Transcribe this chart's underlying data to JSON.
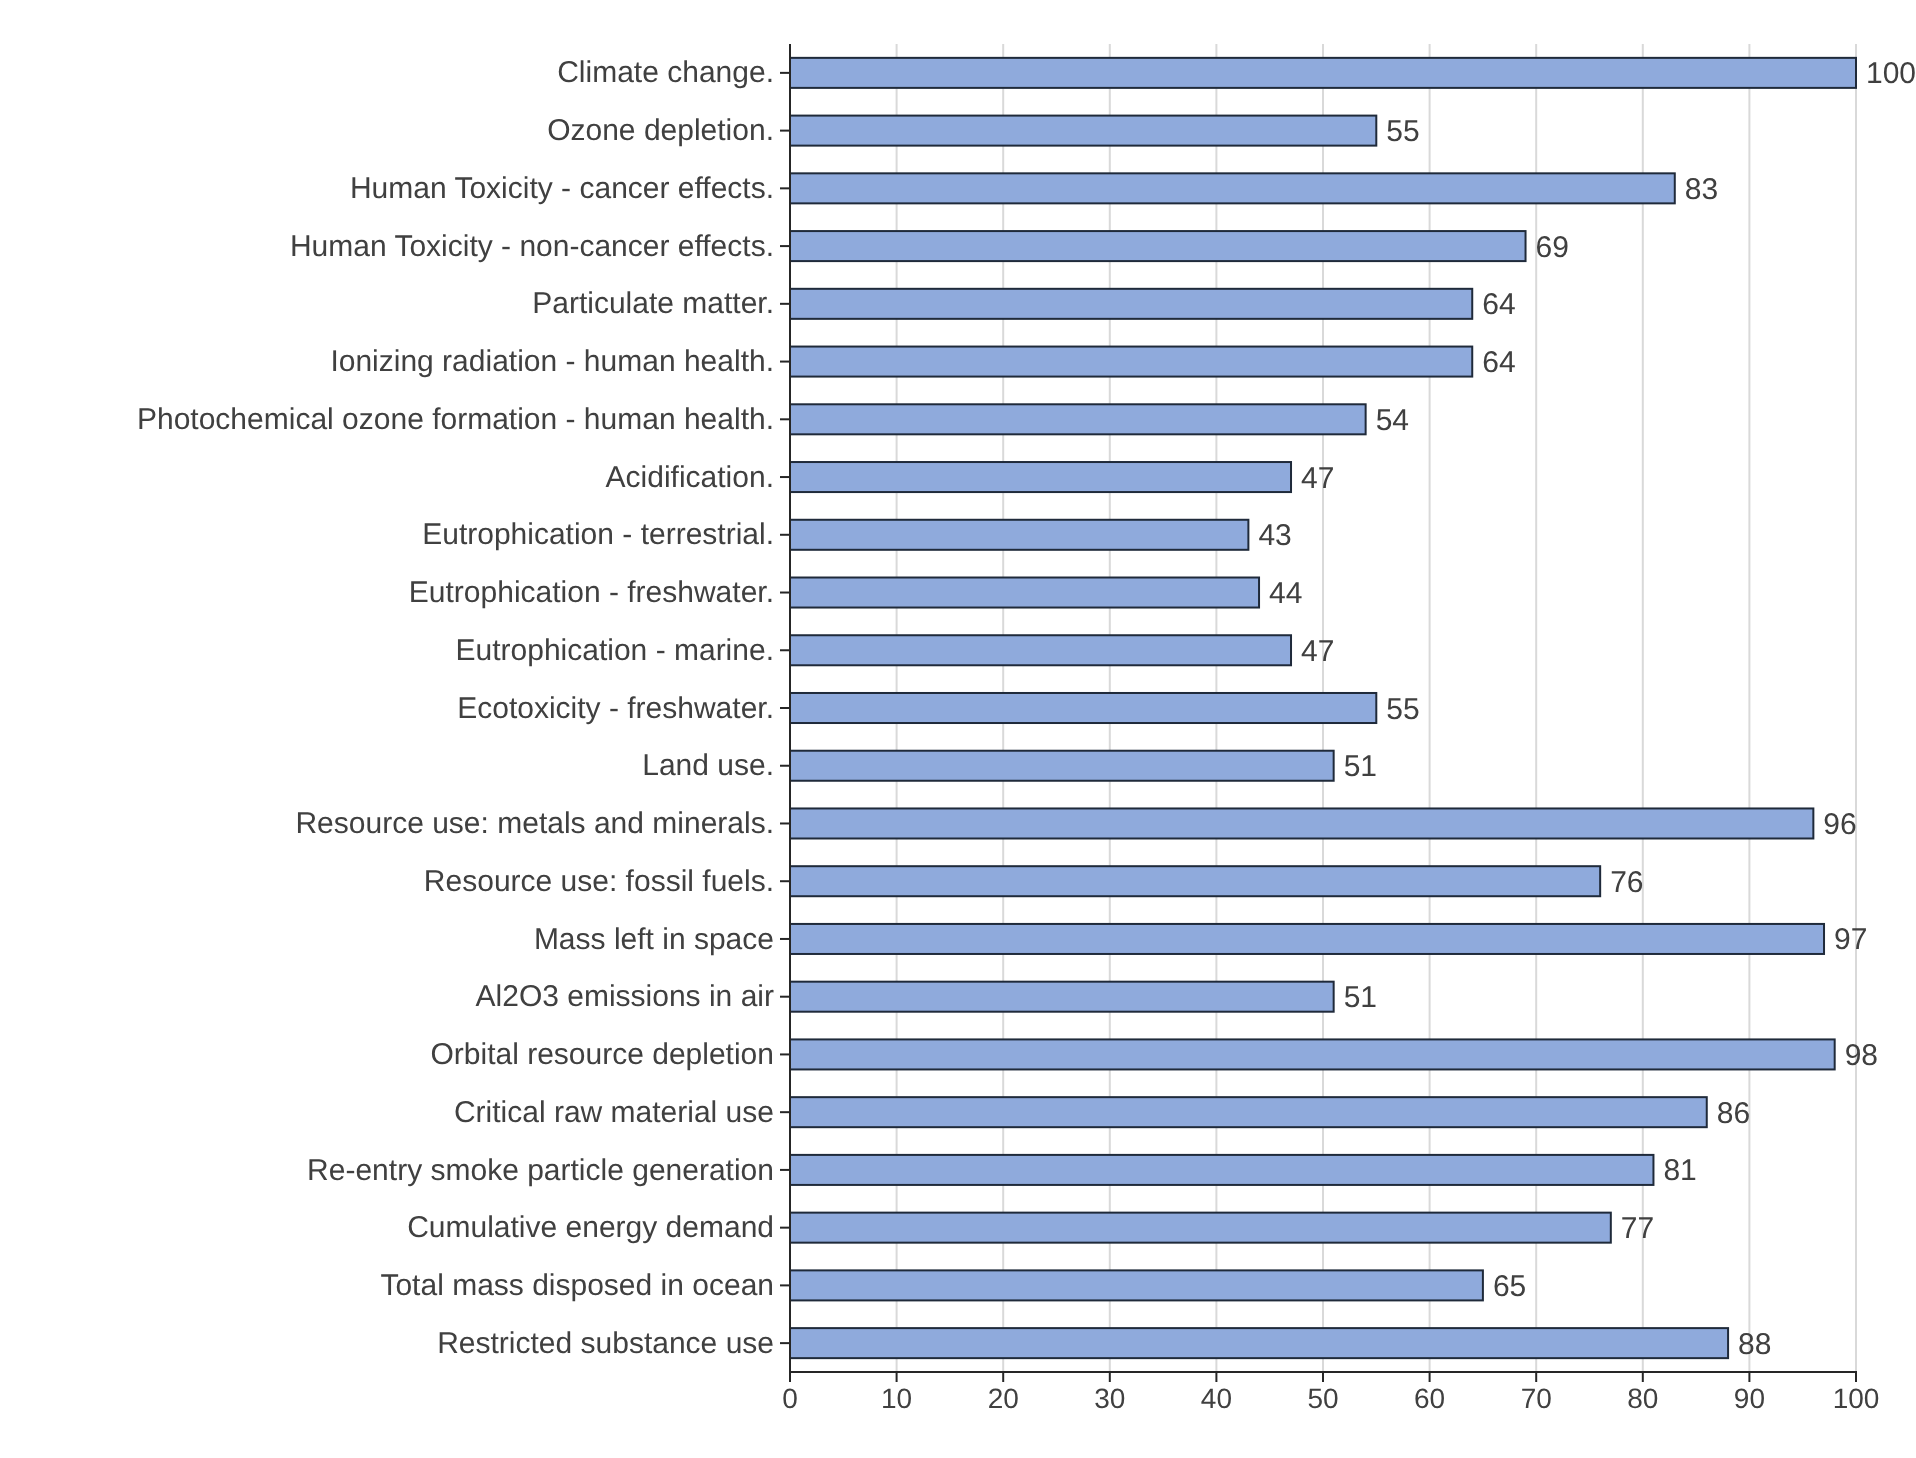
{
  "chart_data": {
    "type": "bar",
    "orientation": "horizontal",
    "categories": [
      "Climate change.",
      "Ozone depletion.",
      "Human Toxicity - cancer effects.",
      "Human Toxicity - non-cancer effects.",
      "Particulate matter.",
      "Ionizing radiation - human health.",
      "Photochemical ozone formation - human health.",
      "Acidification.",
      "Eutrophication - terrestrial.",
      "Eutrophication - freshwater.",
      "Eutrophication - marine.",
      "Ecotoxicity - freshwater.",
      "Land use.",
      "Resource use: metals and minerals.",
      "Resource use: fossil fuels.",
      "Mass left in space",
      "Al2O3 emissions in air",
      "Orbital resource depletion",
      "Critical raw material use",
      "Re-entry smoke particle generation",
      "Cumulative energy demand",
      "Total mass disposed in ocean",
      "Restricted substance use"
    ],
    "values": [
      100,
      55,
      83,
      69,
      64,
      64,
      54,
      47,
      43,
      44,
      47,
      55,
      51,
      96,
      76,
      97,
      51,
      98,
      86,
      81,
      77,
      65,
      88
    ],
    "color": "#8faadc",
    "xlim": [
      0,
      100
    ],
    "xticks": [
      0,
      10,
      20,
      30,
      40,
      50,
      60,
      70,
      80,
      90,
      100
    ],
    "grid": "x",
    "data_labels": true
  }
}
